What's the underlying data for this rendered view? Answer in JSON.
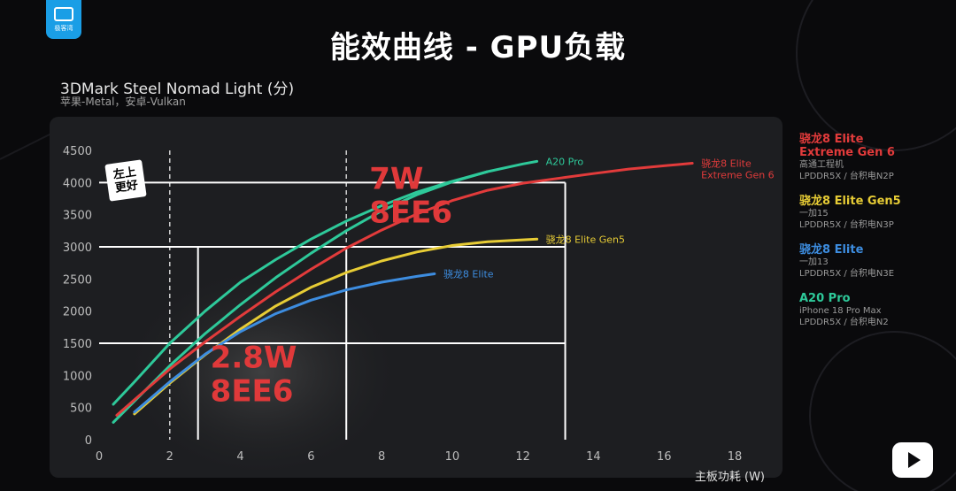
{
  "header": {
    "logo_text": "极客湾",
    "title": "能效曲线 - GPU负载"
  },
  "colors": {
    "red": "#e23b3b",
    "yellow": "#e7cc35",
    "blue": "#3d8de0",
    "teal": "#2ec99a",
    "annotation_red": "#e0393a"
  },
  "chart_data": {
    "type": "line",
    "title": "3DMark Steel Nomad Light (分)",
    "subtitle": "苹果-Metal，安卓-Vulkan",
    "xlabel": "主板功耗 (W)",
    "ylabel": "",
    "xlim": [
      0,
      18
    ],
    "ylim": [
      0,
      4500
    ],
    "xticks": [
      0,
      2,
      4,
      6,
      8,
      10,
      12,
      14,
      16,
      18
    ],
    "yticks": [
      0,
      500,
      1000,
      1500,
      2000,
      2500,
      3000,
      3500,
      4000,
      4500
    ],
    "grid": false,
    "series": [
      {
        "name": "A20 Pro",
        "color": "#2ec99a",
        "label": "A20 Pro",
        "points": [
          [
            0.4,
            550
          ],
          [
            1.0,
            900
          ],
          [
            2.0,
            1500
          ],
          [
            3.0,
            2000
          ],
          [
            4.0,
            2450
          ],
          [
            5.0,
            2800
          ],
          [
            6.0,
            3120
          ],
          [
            7.0,
            3400
          ],
          [
            8.0,
            3640
          ],
          [
            9.0,
            3850
          ],
          [
            10.0,
            4020
          ],
          [
            11.0,
            4170
          ],
          [
            12.0,
            4290
          ],
          [
            12.4,
            4330
          ]
        ]
      },
      {
        "name": "A20 Pro",
        "color": "#2ec99a",
        "label": "",
        "points": [
          [
            0.4,
            270
          ],
          [
            1.0,
            600
          ],
          [
            2.0,
            1150
          ],
          [
            3.0,
            1650
          ],
          [
            4.0,
            2100
          ],
          [
            5.0,
            2520
          ],
          [
            6.0,
            2900
          ],
          [
            7.0,
            3250
          ],
          [
            8.0,
            3560
          ],
          [
            9.0,
            3810
          ],
          [
            10.0,
            4010
          ],
          [
            11.0,
            4170
          ]
        ]
      },
      {
        "name": "骁龙8 Elite Extreme Gen 6",
        "color": "#e23b3b",
        "label": "骁龙8 Elite\nExtreme Gen 6",
        "points": [
          [
            0.5,
            380
          ],
          [
            1.0,
            620
          ],
          [
            2.0,
            1100
          ],
          [
            3.0,
            1520
          ],
          [
            4.0,
            1920
          ],
          [
            5.0,
            2300
          ],
          [
            6.0,
            2650
          ],
          [
            7.0,
            2980
          ],
          [
            8.0,
            3260
          ],
          [
            9.0,
            3510
          ],
          [
            10.0,
            3720
          ],
          [
            11.0,
            3880
          ],
          [
            12.0,
            3990
          ],
          [
            13.2,
            4080
          ],
          [
            14.0,
            4140
          ],
          [
            15.0,
            4210
          ],
          [
            16.0,
            4260
          ],
          [
            16.8,
            4300
          ]
        ]
      },
      {
        "name": "骁龙8 Elite Gen5",
        "color": "#e7cc35",
        "label": "骁龙8 Elite Gen5",
        "points": [
          [
            1.0,
            400
          ],
          [
            2.0,
            880
          ],
          [
            3.0,
            1320
          ],
          [
            4.0,
            1720
          ],
          [
            5.0,
            2080
          ],
          [
            6.0,
            2370
          ],
          [
            7.0,
            2600
          ],
          [
            8.0,
            2780
          ],
          [
            9.0,
            2920
          ],
          [
            10.0,
            3020
          ],
          [
            11.0,
            3080
          ],
          [
            12.4,
            3120
          ]
        ]
      },
      {
        "name": "骁龙8 Elite",
        "color": "#3d8de0",
        "label": "骁龙8 Elite",
        "points": [
          [
            1.0,
            430
          ],
          [
            2.0,
            900
          ],
          [
            3.0,
            1330
          ],
          [
            4.0,
            1680
          ],
          [
            5.0,
            1960
          ],
          [
            6.0,
            2170
          ],
          [
            7.0,
            2330
          ],
          [
            8.0,
            2450
          ],
          [
            9.0,
            2540
          ],
          [
            9.5,
            2580
          ]
        ]
      }
    ],
    "reference_lines": {
      "dashed_vertical_x": [
        2,
        7
      ],
      "solid_vertical_x": [
        2.8,
        7,
        13.2
      ],
      "horizontal": [
        {
          "y": 4000,
          "x_end": 13.2
        },
        {
          "y": 3000,
          "x_end": 13.2
        },
        {
          "y": 1500,
          "x_end": 13.2
        }
      ]
    },
    "annotations": [
      {
        "text": "7W",
        "x": 7,
        "y": 3900,
        "color": "#e0393a",
        "size": "large"
      },
      {
        "text": "8EE6",
        "x": 7,
        "y": 3380,
        "color": "#e0393a",
        "size": "large"
      },
      {
        "text": "2.8W",
        "x": 2.9,
        "y": 1120,
        "color": "#e0393a",
        "size": "large"
      },
      {
        "text": "8EE6",
        "x": 2.9,
        "y": 600,
        "color": "#e0393a",
        "size": "large"
      }
    ],
    "corner_tag": "左上\n更好"
  },
  "legend": [
    {
      "name_lines": [
        "骁龙8 Elite",
        "Extreme Gen 6"
      ],
      "color": "#e23b3b",
      "detail_lines": [
        "高通工程机",
        "LPDDR5X / 台积电N2P"
      ]
    },
    {
      "name_lines": [
        "骁龙8 Elite Gen5"
      ],
      "color": "#e7cc35",
      "detail_lines": [
        "一加15",
        "LPDDR5X / 台积电N3P"
      ]
    },
    {
      "name_lines": [
        "骁龙8 Elite"
      ],
      "color": "#3d8de0",
      "detail_lines": [
        "一加13",
        "LPDDR5X / 台积电N3E"
      ]
    },
    {
      "name_lines": [
        "A20 Pro"
      ],
      "color": "#2ec99a",
      "detail_lines": [
        "iPhone 18 Pro Max",
        "LPDDR5X / 台积电N2"
      ]
    }
  ]
}
